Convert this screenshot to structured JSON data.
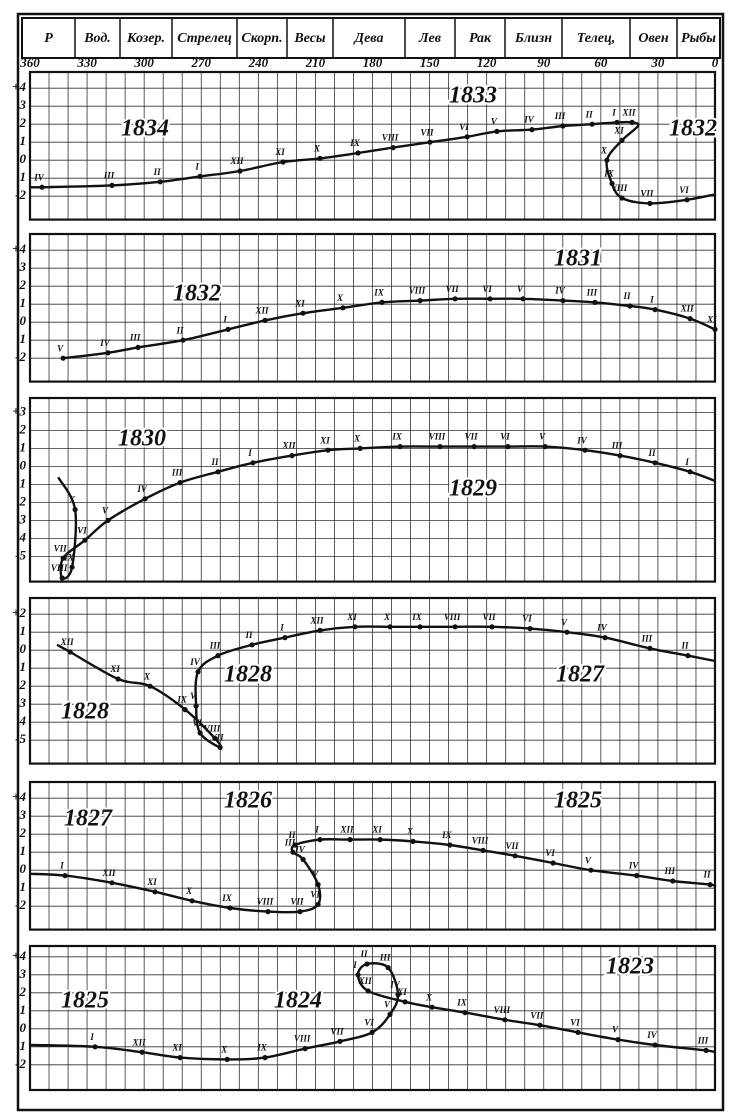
{
  "chart_data": [
    {
      "type": "line",
      "signs": [
        "P",
        "Вод.",
        "Козер.",
        "Стрелец",
        "Скорп.",
        "Весы",
        "Дева",
        "Лев",
        "Рак",
        "Близн",
        "Телец,",
        "Овен",
        "Рыбы"
      ],
      "xlim": [
        360,
        0
      ],
      "xticks": [
        360,
        330,
        300,
        270,
        240,
        210,
        180,
        150,
        120,
        90,
        60,
        30,
        0
      ],
      "xgrid": [
        360,
        350,
        340,
        330,
        320,
        310,
        300,
        290,
        280,
        270,
        260,
        250,
        240,
        230,
        220,
        210,
        200,
        190,
        180,
        170,
        160,
        150,
        140,
        130,
        120,
        110,
        100,
        90,
        80,
        70,
        60,
        50,
        40,
        30,
        20,
        10,
        0
      ],
      "ylim": [
        -3.3,
        4.9
      ],
      "yticks": [
        {
          "value": 4,
          "label": "+4"
        },
        3,
        2,
        1,
        0,
        {
          "value": -1,
          "label": "1"
        },
        -2
      ],
      "annotations": [
        "1834",
        "1833",
        "1832"
      ],
      "color": "#111",
      "x": [
        360,
        353.7,
        316.9,
        291.6,
        270.6,
        249.6,
        227,
        207.6,
        187.6,
        169.2,
        149.8,
        130.3,
        114.6,
        96.2,
        79.9,
        64.6,
        51.5,
        43.6,
        40.5,
        48.9,
        56.8,
        54.1,
        48.9,
        34.2,
        14.7,
        0
      ],
      "values": [
        -1.5,
        -1.5,
        -1.4,
        -1.2,
        -0.9,
        -0.6,
        -0.1,
        0.1,
        0.4,
        0.7,
        1.0,
        1.3,
        1.6,
        1.7,
        1.9,
        2.0,
        2.1,
        2.1,
        1.9,
        1.1,
        0.0,
        -1.3,
        -2.1,
        -2.4,
        -2.2,
        -1.9
      ],
      "point_labels": [
        null,
        "IV",
        "III",
        "II",
        "I",
        "XII",
        "XI",
        "X",
        "IX",
        "VIII",
        "VII",
        "VI",
        "V",
        "IV",
        "III",
        "II",
        "I",
        "XII",
        null,
        "XI",
        "X",
        "IX",
        "VIII",
        "VII",
        "VI",
        null
      ]
    },
    {
      "type": "line",
      "xlim": [
        360,
        0
      ],
      "ylim": [
        -3.3,
        4.9
      ],
      "yticks": [
        {
          "value": 4,
          "label": "+4"
        },
        3,
        2,
        1,
        0,
        {
          "value": -1,
          "label": "1"
        },
        -2
      ],
      "annotations": [
        "1832",
        "1831"
      ],
      "color": "#111",
      "x": [
        342.6,
        319,
        303.2,
        279.6,
        255.9,
        236.5,
        216.5,
        195.5,
        175,
        155,
        136.6,
        118.2,
        100.9,
        79.9,
        63.1,
        44.7,
        31.5,
        13.1,
        0
      ],
      "values": [
        -2.0,
        -1.7,
        -1.4,
        -1.0,
        -0.4,
        0.1,
        0.5,
        0.8,
        1.1,
        1.2,
        1.3,
        1.3,
        1.3,
        1.2,
        1.1,
        0.9,
        0.7,
        0.2,
        -0.4
      ],
      "point_labels": [
        "V",
        "IV",
        "III",
        "II",
        "I",
        "XII",
        "XI",
        "X",
        "IX",
        "VIII",
        "VII",
        "VI",
        "V",
        "IV",
        "III",
        "II",
        "I",
        "XII",
        "XI"
      ]
    },
    {
      "type": "line",
      "xlim": [
        360,
        0
      ],
      "ylim": [
        -6.4,
        3.8
      ],
      "yticks": [
        {
          "value": 3,
          "label": "+3"
        },
        2,
        1,
        0,
        {
          "value": -1,
          "label": "1"
        },
        {
          "value": -2,
          "label": "2"
        },
        {
          "value": -3,
          "label": "3"
        },
        {
          "value": -4,
          "label": "4"
        },
        -5
      ],
      "annotations": [
        "1830",
        "1829"
      ],
      "color": "#111",
      "x": [
        0,
        13.1,
        31.5,
        49.9,
        68.3,
        89.3,
        108.8,
        126.6,
        144.5,
        165.5,
        186.5,
        203.4,
        222.3,
        242.8,
        261.2,
        281.1,
        299.5,
        319,
        331.1,
        342.6,
        343.1,
        337.9,
        336.3,
        345.2
      ],
      "values": [
        -0.8,
        -0.3,
        0.2,
        0.6,
        0.9,
        1.1,
        1.1,
        1.1,
        1.1,
        1.1,
        1.0,
        0.9,
        0.6,
        0.2,
        -0.3,
        -0.9,
        -1.8,
        -3.0,
        -4.1,
        -5.1,
        -6.2,
        -5.6,
        -2.4,
        -0.6
      ],
      "point_labels": [
        null,
        "I",
        "II",
        "III",
        "IV",
        "V",
        "VI",
        "VII",
        "VIII",
        "IX",
        "X",
        "XI",
        "XII",
        "I",
        "II",
        "III",
        "IV",
        "V",
        "VI",
        "VII",
        "VIII",
        "IX",
        "X",
        null
      ]
    },
    {
      "type": "line",
      "xlim": [
        360,
        0
      ],
      "ylim": [
        -6.3,
        2.9
      ],
      "yticks": [
        {
          "value": 2,
          "label": "+2"
        },
        1,
        0,
        {
          "value": -1,
          "label": "1"
        },
        {
          "value": -2,
          "label": "2"
        },
        {
          "value": -3,
          "label": "3"
        },
        {
          "value": -4,
          "label": "4"
        },
        -5
      ],
      "annotations": [
        "1828",
        "1827",
        "1828"
      ],
      "color": "#111",
      "x": [
        0,
        14.2,
        34.2,
        57.8,
        77.8,
        97.2,
        117.2,
        136.6,
        155,
        170.8,
        189.2,
        207.6,
        226,
        243.3,
        261.2,
        271.7,
        272.7,
        270.6,
        260.1,
        262.8,
        278.5,
        296.9,
        313.7,
        338.9,
        345.8
      ],
      "values": [
        -0.6,
        -0.3,
        0.1,
        0.7,
        1.0,
        1.2,
        1.3,
        1.3,
        1.3,
        1.3,
        1.3,
        1.1,
        0.7,
        0.3,
        -0.3,
        -1.2,
        -3.1,
        -4.6,
        -5.4,
        -4.9,
        -3.3,
        -2.0,
        -1.6,
        -0.1,
        0.3
      ],
      "point_labels": [
        null,
        "II",
        "III",
        "IV",
        "V",
        "VI",
        "VII",
        "VIII",
        "IX",
        "X",
        "XI",
        "XII",
        "I",
        "II",
        "III",
        "IV",
        "V",
        "VI",
        "VII",
        "VIII",
        "IX",
        "X",
        "XI",
        "XII",
        null
      ]
    },
    {
      "type": "line",
      "xlim": [
        360,
        0
      ],
      "ylim": [
        -3.3,
        4.9
      ],
      "yticks": [
        {
          "value": 4,
          "label": "+4"
        },
        3,
        2,
        1,
        0,
        {
          "value": -1,
          "label": "1"
        },
        -2
      ],
      "annotations": [
        "1827",
        "1826",
        "1825"
      ],
      "color": "#111",
      "x": [
        0,
        2.6,
        22.2,
        41.2,
        65.2,
        85.1,
        105.1,
        121.9,
        139.3,
        158.7,
        176,
        191.8,
        207.6,
        220.7,
        221.8,
        216.5,
        208.6,
        208.6,
        218.1,
        234.9,
        254.9,
        274.8,
        294.3,
        316.9,
        341.6,
        360
      ],
      "values": [
        -0.9,
        -0.8,
        -0.6,
        -0.3,
        0.0,
        0.4,
        0.8,
        1.1,
        1.4,
        1.6,
        1.7,
        1.7,
        1.7,
        1.4,
        1.0,
        0.6,
        -0.8,
        -1.9,
        -2.3,
        -2.3,
        -2.1,
        -1.7,
        -1.2,
        -0.7,
        -0.3,
        -0.2
      ],
      "point_labels": [
        null,
        "II",
        "III",
        "IV",
        "V",
        "VI",
        "VII",
        "VIII",
        "IX",
        "X",
        "XI",
        "XII",
        "I",
        "II",
        "III",
        "IV",
        "V",
        "VI",
        "VII",
        "VIII",
        "IX",
        "X",
        "XI",
        "XII",
        "I",
        null
      ]
    },
    {
      "type": "line",
      "xlim": [
        360,
        0
      ],
      "ylim": [
        -3.4,
        4.6
      ],
      "yticks": [
        {
          "value": 4,
          "label": "+4"
        },
        3,
        2,
        1,
        0,
        {
          "value": -1,
          "label": "1"
        },
        -2
      ],
      "annotations": [
        "1825",
        "1824",
        "1823"
      ],
      "color": "#111",
      "x": [
        0,
        4.7,
        31.5,
        51,
        72,
        92,
        110.4,
        131.4,
        148.7,
        162.9,
        182.3,
        187.6,
        182.9,
        171.8,
        166.6,
        170.8,
        180.2,
        197.1,
        215.4,
        236.5,
        256.4,
        281.1,
        301.1,
        325.8,
        360
      ],
      "values": [
        -1.3,
        -1.2,
        -0.9,
        -0.6,
        -0.2,
        0.2,
        0.5,
        0.9,
        1.2,
        1.5,
        2.1,
        3.0,
        3.6,
        3.4,
        1.9,
        0.8,
        -0.2,
        -0.7,
        -1.1,
        -1.6,
        -1.7,
        -1.6,
        -1.3,
        -1.0,
        -0.9
      ],
      "point_labels": [
        null,
        "III",
        "IV",
        "V",
        "VI",
        "VII",
        "VIII",
        "IX",
        "X",
        "XI",
        "XII",
        "I",
        "II",
        "III",
        "IV",
        "V",
        "VI",
        "VII",
        "VIII",
        "IX",
        "X",
        "XI",
        "XII",
        "I",
        null
      ]
    }
  ]
}
